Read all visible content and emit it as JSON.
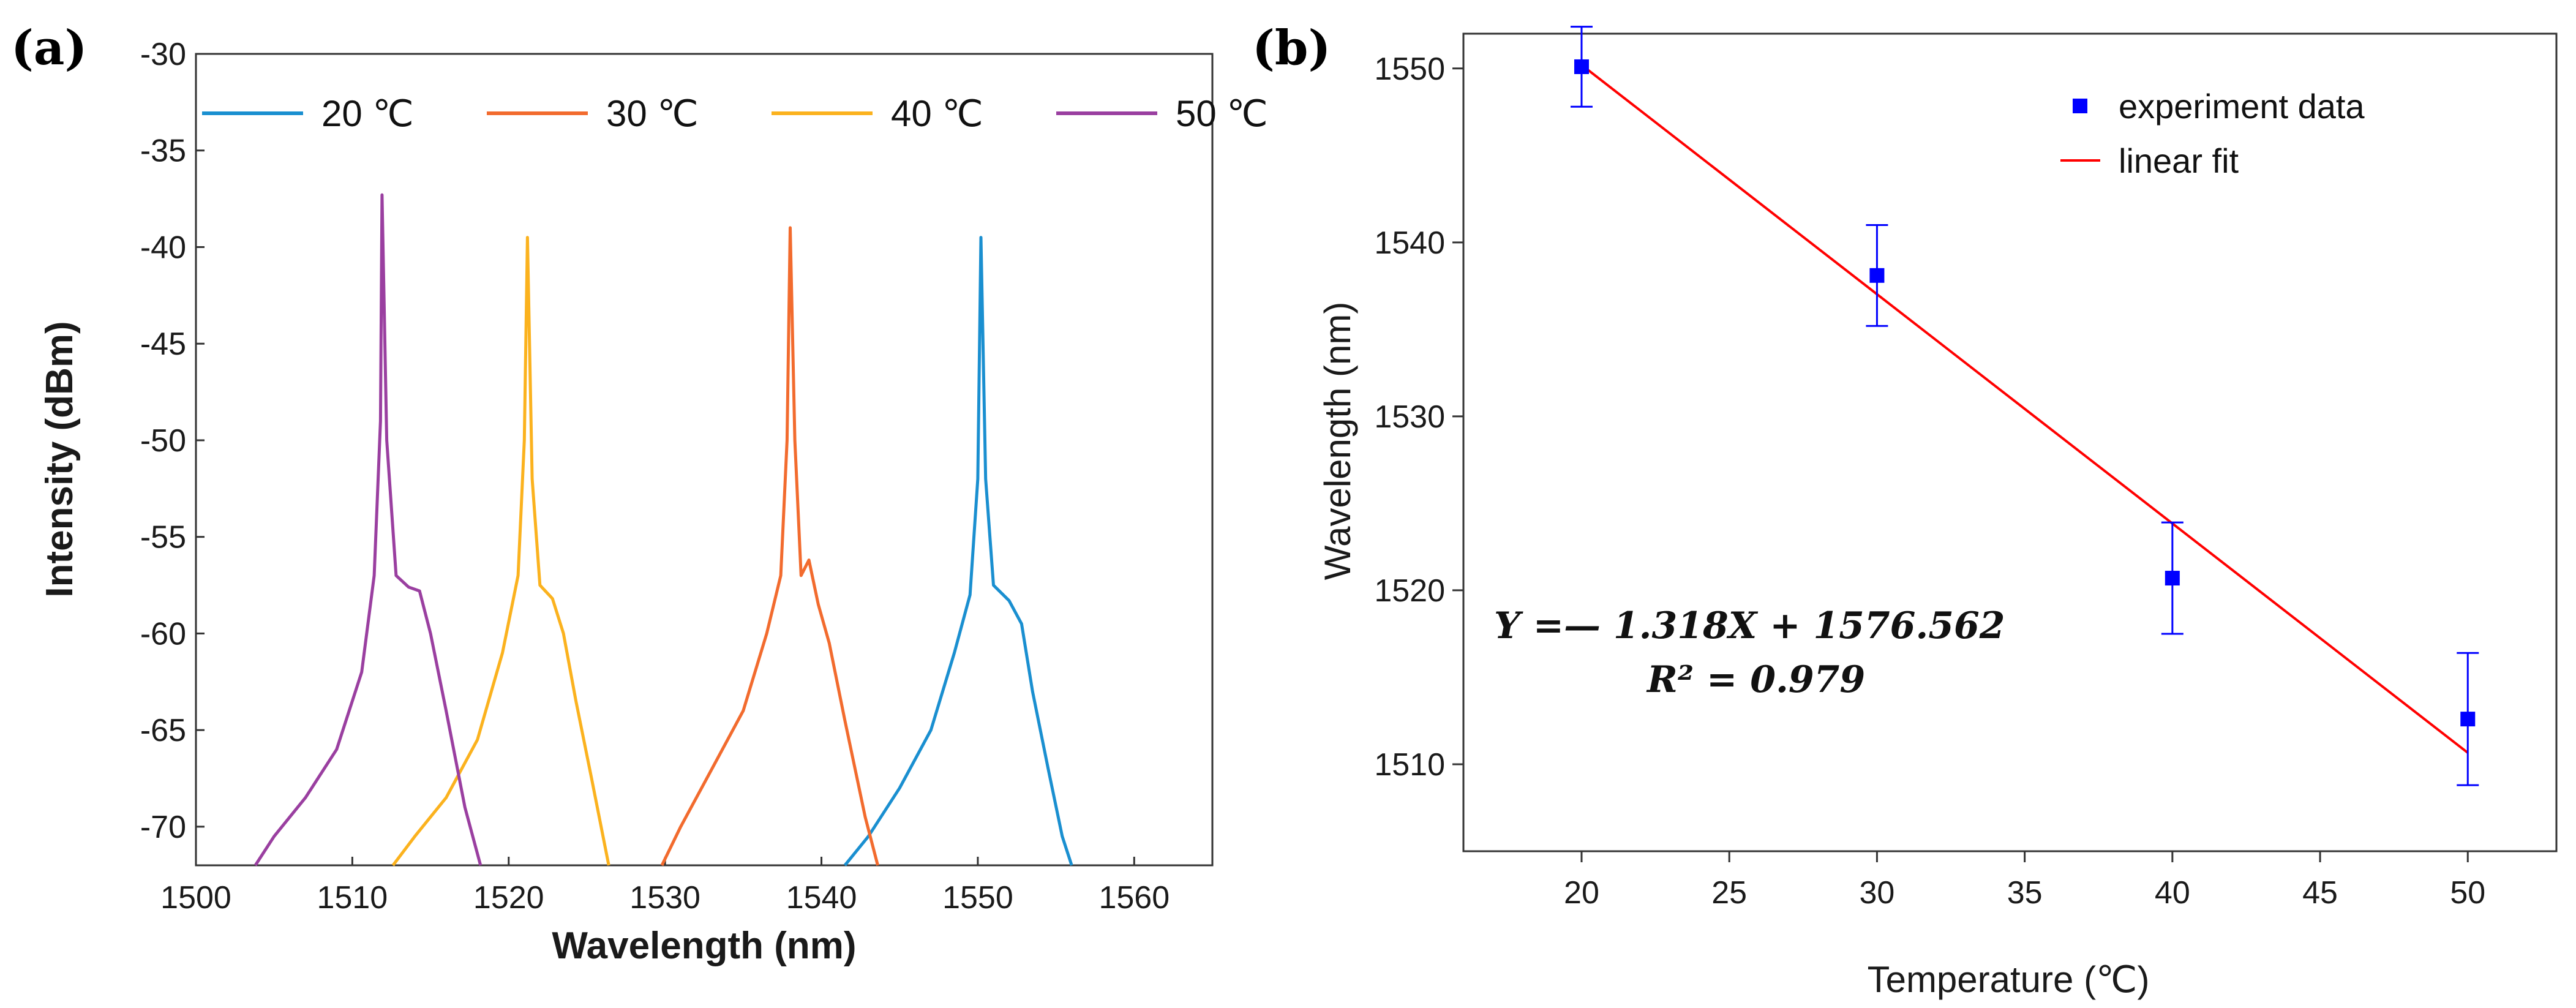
{
  "chart_data": [
    {
      "panel": "(a)",
      "type": "line",
      "xlabel": "Wavelength (nm)",
      "ylabel": "Intensity (dBm)",
      "xlim": [
        1500,
        1565
      ],
      "ylim": [
        -72,
        -30
      ],
      "xticks": [
        1500,
        1510,
        1520,
        1530,
        1540,
        1550,
        1560
      ],
      "yticks": [
        -30,
        -35,
        -40,
        -45,
        -50,
        -55,
        -60,
        -65,
        -70
      ],
      "grid": false,
      "legend_position": "top",
      "series": [
        {
          "name": "20 ℃",
          "color": "#1a8fd0",
          "peak_x": 1550.2,
          "peak_y": -39.5,
          "x": [
            1541.5,
            1543,
            1545,
            1547,
            1548.5,
            1549.5,
            1550.0,
            1550.2,
            1550.5,
            1551,
            1552,
            1552.8,
            1553.5,
            1554.5,
            1555.4,
            1556
          ],
          "y": [
            -72,
            -70.5,
            -68,
            -65,
            -61,
            -58,
            -52,
            -39.5,
            -52,
            -57.5,
            -58.3,
            -59.5,
            -63,
            -67,
            -70.5,
            -72
          ]
        },
        {
          "name": "30 ℃",
          "color": "#f26b2e",
          "peak_x": 1538.0,
          "peak_y": -39.0,
          "x": [
            1529.8,
            1531,
            1533,
            1535,
            1536.5,
            1537.4,
            1537.8,
            1538.0,
            1538.3,
            1538.7,
            1539.2,
            1539.8,
            1540.5,
            1541.5,
            1542.8,
            1543.6
          ],
          "y": [
            -72,
            -70,
            -67,
            -64,
            -60,
            -57,
            -50,
            -39.0,
            -50,
            -57,
            -56.2,
            -58.5,
            -60.5,
            -64.5,
            -69.5,
            -72
          ]
        },
        {
          "name": "40 ℃",
          "color": "#fbb21e",
          "peak_x": 1521.2,
          "peak_y": -39.5,
          "x": [
            1512.6,
            1514,
            1516,
            1518,
            1519.6,
            1520.6,
            1521.0,
            1521.2,
            1521.5,
            1522,
            1522.8,
            1523.5,
            1524.3,
            1525.3,
            1526.4
          ],
          "y": [
            -72,
            -70.5,
            -68.5,
            -65.5,
            -61,
            -57,
            -50,
            -39.5,
            -52,
            -57.5,
            -58.2,
            -60,
            -63.5,
            -67.5,
            -72
          ]
        },
        {
          "name": "50 ℃",
          "color": "#9a3fa0",
          "peak_x": 1511.9,
          "peak_y": -37.3,
          "x": [
            1503.8,
            1505,
            1507,
            1509,
            1510.6,
            1511.4,
            1511.8,
            1511.9,
            1512.2,
            1512.8,
            1513.6,
            1514.3,
            1515,
            1516,
            1517.2,
            1518.2
          ],
          "y": [
            -72,
            -70.5,
            -68.5,
            -66,
            -62,
            -57,
            -49,
            -37.3,
            -50,
            -57,
            -57.6,
            -57.8,
            -60,
            -64,
            -69,
            -72
          ]
        }
      ]
    },
    {
      "panel": "(b)",
      "type": "scatter",
      "xlabel": "Temperature (℃)",
      "ylabel": "Wavelength (nm)",
      "xlim": [
        16,
        53
      ],
      "ylim": [
        1505,
        1552
      ],
      "xticks": [
        20,
        25,
        30,
        35,
        40,
        45,
        50
      ],
      "yticks": [
        1510,
        1520,
        1530,
        1540,
        1550
      ],
      "grid": false,
      "legend_position": "top-right",
      "series": [
        {
          "name": "experiment data",
          "color": "#0000ff",
          "x": [
            20,
            30,
            40,
            50
          ],
          "y": [
            1550.1,
            1538.1,
            1520.7,
            1512.6
          ],
          "error": [
            2.3,
            2.9,
            3.2,
            3.8
          ]
        },
        {
          "name": "linear fit",
          "color": "#ff0000",
          "type": "line",
          "x": [
            20,
            50
          ],
          "slope": -1.318,
          "intercept": 1576.562
        }
      ],
      "annotations": [
        "Y =— 1.318X + 1576.562",
        "R² = 0.979"
      ]
    }
  ]
}
